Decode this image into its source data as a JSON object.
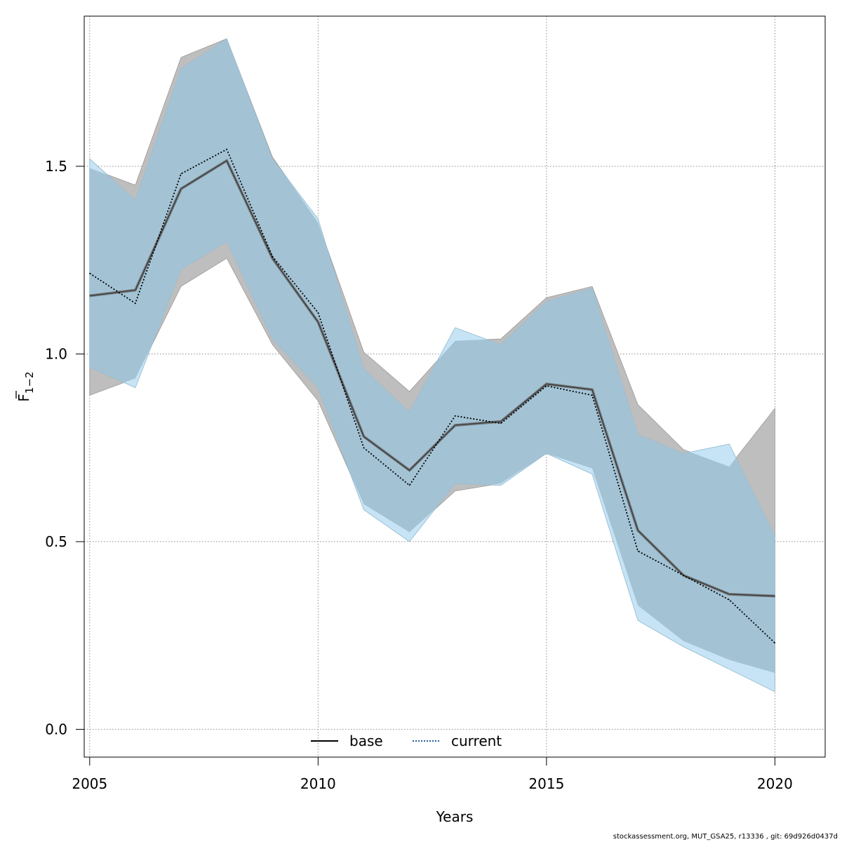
{
  "chart_data": {
    "type": "line",
    "xlabel": "Years",
    "ylabel_main": "F",
    "ylabel_subscript": "1−2",
    "xlim": [
      2004.88,
      2021.1
    ],
    "ylim": [
      -0.074,
      1.9
    ],
    "x_ticks": [
      "2005",
      "2010",
      "2015",
      "2020"
    ],
    "y_ticks": [
      "0.0",
      "0.5",
      "1.0",
      "1.5"
    ],
    "grid": true,
    "legend_position": "bottom-center",
    "x": [
      2005,
      2006,
      2007,
      2008,
      2009,
      2010,
      2011,
      2012,
      2013,
      2014,
      2015,
      2016,
      2017,
      2018,
      2019,
      2020
    ],
    "series": [
      {
        "name": "base",
        "line_style": "solid",
        "line_color": "#555555",
        "band_color": "#bebebe",
        "values": [
          1.155,
          1.17,
          1.44,
          1.515,
          1.255,
          1.085,
          0.78,
          0.69,
          0.81,
          0.82,
          0.92,
          0.905,
          0.53,
          0.41,
          0.36,
          0.355
        ],
        "upper": [
          1.495,
          1.45,
          1.79,
          1.84,
          1.525,
          1.35,
          1.005,
          0.9,
          1.035,
          1.04,
          1.15,
          1.18,
          0.865,
          0.745,
          0.7,
          0.855
        ],
        "lower": [
          0.89,
          0.935,
          1.18,
          1.255,
          1.025,
          0.875,
          0.6,
          0.525,
          0.635,
          0.655,
          0.735,
          0.695,
          0.33,
          0.235,
          0.185,
          0.15
        ]
      },
      {
        "name": "current",
        "line_style": "dotted",
        "line_color": "#000000",
        "band_color": "#c6e4f5",
        "values": [
          1.215,
          1.135,
          1.48,
          1.545,
          1.26,
          1.11,
          0.75,
          0.65,
          0.835,
          0.815,
          0.915,
          0.89,
          0.475,
          0.41,
          0.345,
          0.23
        ],
        "upper": [
          1.52,
          1.41,
          1.76,
          1.84,
          1.52,
          1.36,
          0.96,
          0.845,
          1.07,
          1.025,
          1.14,
          1.175,
          0.785,
          0.735,
          0.76,
          0.515
        ],
        "lower": [
          0.965,
          0.91,
          1.225,
          1.3,
          1.04,
          0.91,
          0.585,
          0.5,
          0.655,
          0.65,
          0.735,
          0.68,
          0.29,
          0.22,
          0.16,
          0.1
        ]
      }
    ],
    "overlap_color": "#a3c3d5"
  },
  "footer_text": "stockassessment.org, MUT_GSA25, r13336 , git: 69d926d0437d"
}
